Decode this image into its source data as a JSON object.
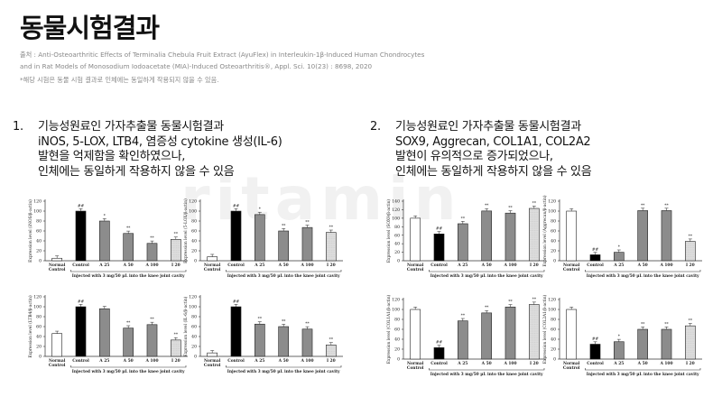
{
  "title": "동물시험결과",
  "source_line1": "출처 : Anti-Osteoarthritic Effects of Terminalia Chebula Fruit Extract (AyuFlex) in Interleukin-1β-Induced Human Chondrocytes",
  "source_line2": "and in Rat Models of Monosodium Iodoacetate (MIA)-Induced Osteoarthritis®, Appl. Sci. 10(23) : 8698, 2020",
  "note": "*해당 시험은 동물 시험 결과로 인체에는 동일하게 작용되지 않을 수 있음.",
  "watermark": "ritamin",
  "section1": {
    "number": "1.",
    "lines": [
      "기능성원료인 가자추출물 동물시험결과",
      "iNOS, 5-LOX, LTB4, 염증성 cytokine 생성(IL-6)",
      "발현을 억제함을 확인하였으나,",
      "인체에는 동일하게 작용하지 않을 수 있음"
    ]
  },
  "section2": {
    "number": "2.",
    "lines": [
      "기능성원료인 가자추출물 동물시험결과",
      "SOX9, Aggrecan, COL1A1, COL2A2",
      "발현이 유의적으로 증가되었으나,",
      "인체에는 동일하게 작용하지 않을 수 있음"
    ]
  },
  "chart_data": [
    {
      "type": "bar",
      "ylabel": "Expression level (iNOS/β-actin)",
      "xlabel": "Injected with 3 mg/50 μL into the knee joint cavity",
      "categories": [
        "Normal Control",
        "Control",
        "A 25",
        "A 50",
        "A 100",
        "I 20"
      ],
      "values": [
        5,
        100,
        80,
        55,
        35,
        43
      ],
      "sig": [
        "",
        "##",
        "*",
        "**",
        "**",
        "**"
      ],
      "ylim": [
        0,
        120
      ],
      "yticks": [
        0,
        20,
        40,
        60,
        80,
        100,
        120
      ]
    },
    {
      "type": "bar",
      "ylabel": "Expression level (5-LOX/β-actin)",
      "xlabel": "Injected with 3 mg/50 μL into the knee joint cavity",
      "categories": [
        "Normal Control",
        "Control",
        "A 25",
        "A 50",
        "A 100",
        "I 20"
      ],
      "values": [
        8,
        100,
        93,
        60,
        67,
        57
      ],
      "sig": [
        "",
        "##",
        "*",
        "**",
        "**",
        "**"
      ],
      "ylim": [
        0,
        120
      ],
      "yticks": [
        0,
        20,
        40,
        60,
        80,
        100,
        120
      ]
    },
    {
      "type": "bar",
      "ylabel": "Expression level (LTB4/β-actin)",
      "xlabel": "Injected with 3 mg/50 μL into the knee joint cavity",
      "categories": [
        "Normal Control",
        "Control",
        "A 25",
        "A 50",
        "A 100",
        "I 20"
      ],
      "values": [
        46,
        100,
        96,
        57,
        64,
        33
      ],
      "sig": [
        "",
        "##",
        "",
        "**",
        "**",
        "**"
      ],
      "ylim": [
        0,
        120
      ],
      "yticks": [
        0,
        20,
        40,
        60,
        80,
        100,
        120
      ]
    },
    {
      "type": "bar",
      "ylabel": "Expression level (IL-6/β-actin)",
      "xlabel": "Injected with 3 mg/50 μL into the knee joint cavity",
      "categories": [
        "Normal Control",
        "Control",
        "A 25",
        "A 50",
        "A 100",
        "I 20"
      ],
      "values": [
        7,
        100,
        65,
        60,
        55,
        23
      ],
      "sig": [
        "",
        "##",
        "**",
        "**",
        "**",
        "**"
      ],
      "ylim": [
        0,
        120
      ],
      "yticks": [
        0,
        20,
        40,
        60,
        80,
        100,
        120
      ]
    },
    {
      "type": "bar",
      "ylabel": "Expression level (SOX9/β-actin)",
      "xlabel": "Injected with 3 mg/50 μL into the knee joint cavity",
      "categories": [
        "Normal Control",
        "Control",
        "A 25",
        "A 50",
        "A 100",
        "I 20"
      ],
      "values": [
        100,
        63,
        87,
        117,
        112,
        123
      ],
      "sig": [
        "",
        "##",
        "**",
        "**",
        "**",
        "**"
      ],
      "ylim": [
        0,
        140
      ],
      "yticks": [
        0,
        20,
        40,
        60,
        80,
        100,
        120,
        140
      ]
    },
    {
      "type": "bar",
      "ylabel": "Expression level (Aggrecan/β-actin)",
      "xlabel": "Injected with 3 mg/50 μL into the knee joint cavity",
      "categories": [
        "Normal Control",
        "Control",
        "A 25",
        "A 50",
        "A 100",
        "I 20"
      ],
      "values": [
        100,
        12,
        17,
        101,
        101,
        39
      ],
      "sig": [
        "",
        "##",
        "*",
        "**",
        "**",
        "**"
      ],
      "ylim": [
        0,
        120
      ],
      "yticks": [
        0,
        20,
        40,
        60,
        80,
        100,
        120
      ]
    },
    {
      "type": "bar",
      "ylabel": "Expression level (COL1A1/β-actin)",
      "xlabel": "Injected with 3 mg/50 μL into the knee joint cavity",
      "categories": [
        "Normal Control",
        "Control",
        "A 25",
        "A 50",
        "A 100",
        "I 20"
      ],
      "values": [
        100,
        23,
        77,
        93,
        105,
        110
      ],
      "sig": [
        "",
        "##",
        "**",
        "**",
        "**",
        "**"
      ],
      "ylim": [
        0,
        120
      ],
      "yticks": [
        0,
        20,
        40,
        60,
        80,
        100,
        120
      ]
    },
    {
      "type": "bar",
      "ylabel": "Expression level (COL2A1/β-actin)",
      "xlabel": "Injected with 3 mg/50 μL into the knee joint cavity",
      "categories": [
        "Normal Control",
        "Control",
        "A 25",
        "A 50",
        "A 100",
        "I 20"
      ],
      "values": [
        100,
        30,
        35,
        60,
        60,
        67
      ],
      "sig": [
        "",
        "##",
        "*",
        "**",
        "**",
        "**"
      ],
      "ylim": [
        0,
        120
      ],
      "yticks": [
        0,
        20,
        40,
        60,
        80,
        100,
        120
      ]
    }
  ]
}
